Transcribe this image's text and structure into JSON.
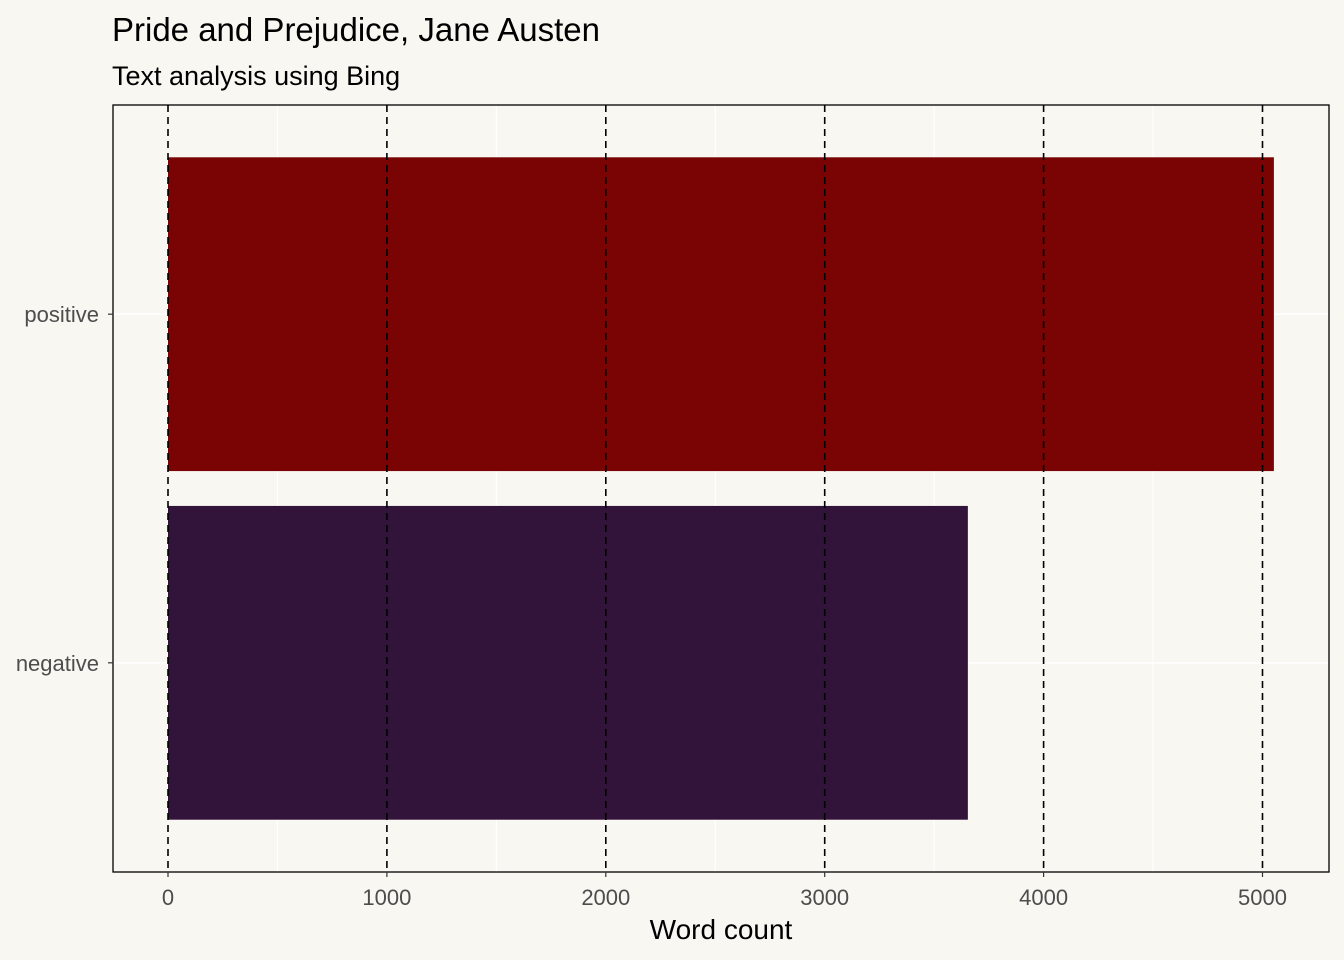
{
  "chart_data": {
    "type": "bar",
    "orientation": "horizontal",
    "title": "Pride and Prejudice, Jane Austen",
    "subtitle": "Text analysis using Bing",
    "xlabel": "Word count",
    "ylabel": "",
    "categories": [
      "negative",
      "positive"
    ],
    "values": [
      3654,
      5052
    ],
    "bar_colors": [
      "#32133a",
      "#7a0404"
    ],
    "xlim": [
      -250,
      5300
    ],
    "x_ticks": [
      0,
      1000,
      2000,
      3000,
      4000,
      5000
    ],
    "x_tick_labels": [
      "0",
      "1000",
      "2000",
      "3000",
      "4000",
      "5000"
    ],
    "gridlines": "dashed vertical at major ticks",
    "legend": "none"
  }
}
